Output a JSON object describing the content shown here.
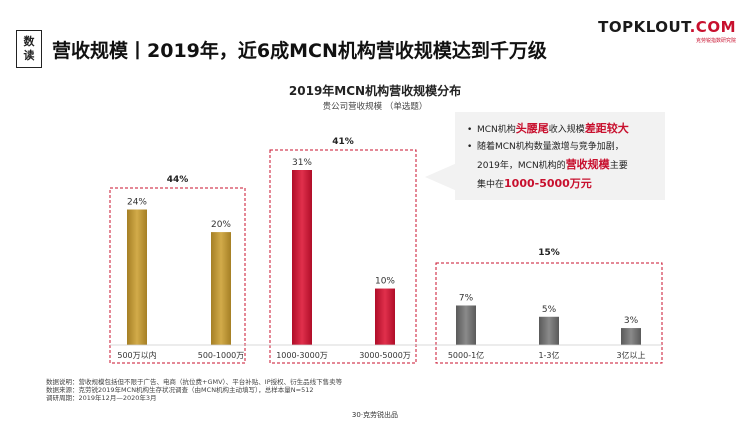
{
  "badge": {
    "line1": "数",
    "line2": "读"
  },
  "headline": "营收规模丨2019年，近6成MCN机构营收规模达到千万级",
  "logo": {
    "main_a": "TOPKLOUT",
    "main_b": ".COM",
    "sub": "克劳锐指数研究院"
  },
  "chart_data": {
    "type": "bar",
    "title": "2019年MCN机构营收规模分布",
    "subtitle": "贵公司营收规模 （单选题）",
    "categories": [
      "500万以内",
      "500-1000万",
      "1000-3000万",
      "3000-5000万",
      "5000-1亿",
      "1-3亿",
      "3亿以上"
    ],
    "values": [
      24,
      20,
      31,
      10,
      7,
      5,
      3
    ],
    "value_labels": [
      "24%",
      "20%",
      "31%",
      "10%",
      "7%",
      "5%",
      "3%"
    ],
    "unit": "%",
    "ylim": [
      0,
      31
    ],
    "groups": [
      {
        "label": "44%",
        "members": [
          0,
          1
        ],
        "color": "#b8912e"
      },
      {
        "label": "41%",
        "members": [
          2,
          3
        ],
        "color": "#c8102e"
      },
      {
        "label": "15%",
        "members": [
          4,
          5,
          6
        ],
        "color": "#6b6b6b"
      }
    ],
    "grid": false,
    "legend": "none"
  },
  "callout": {
    "bullet": "•",
    "line1_a": "MCN机构",
    "line1_b": "头腰尾",
    "line1_c": "收入规模",
    "line1_d": "差距较大",
    "line2": "随着MCN机构数量激增与竞争加剧，",
    "line3_a": "2019年，MCN机构的",
    "line3_b": "营收规模",
    "line3_c": "主要",
    "line4_a": "集中在",
    "line4_b": "1000-5000万元"
  },
  "footnotes": {
    "line1": "数据说明：营收规模包括但不限于广告、电商（抗位费+GMV）、平台补贴、IP授权、衍生品线下售卖等",
    "line2": "数据来源：克劳锐2019年MCN机构生存状况调查（由MCN机构主动填写），总样本量N=512",
    "line3": "调研周期：2019年12月—2020年3月"
  },
  "footer": "30·克劳锐出品"
}
